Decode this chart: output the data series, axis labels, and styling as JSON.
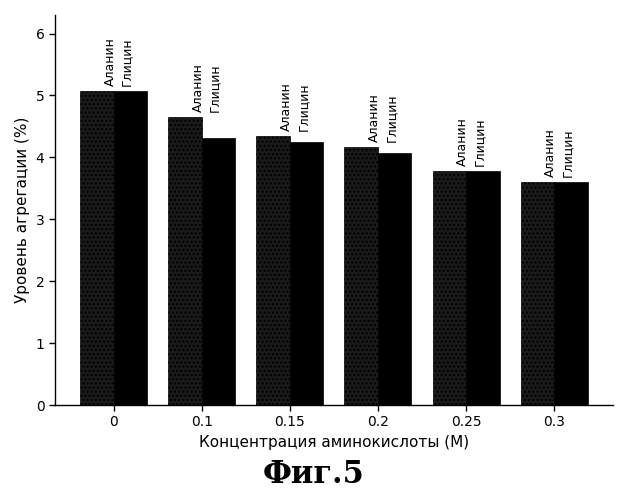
{
  "categories": [
    "0",
    "0.1",
    "0.15",
    "0.2",
    "0.25",
    "0.3"
  ],
  "alanin": [
    5.07,
    4.65,
    4.35,
    4.17,
    3.78,
    3.6
  ],
  "glitsin": [
    5.07,
    4.32,
    4.25,
    4.07,
    3.78,
    3.6
  ],
  "xlabel": "Концентрация аминокислоты (М)",
  "ylabel": "Уровень агрегации (%)",
  "title": "Фиг.5",
  "ylim": [
    0,
    6.3
  ],
  "yticks": [
    0,
    1,
    2,
    3,
    4,
    5,
    6
  ],
  "label_alanin": "Аланин",
  "label_glitsin": "Глицин",
  "bar_width": 0.38,
  "background_color": "#ffffff",
  "title_fontsize": 22,
  "axis_fontsize": 11,
  "tick_fontsize": 10,
  "annotation_fontsize": 9
}
